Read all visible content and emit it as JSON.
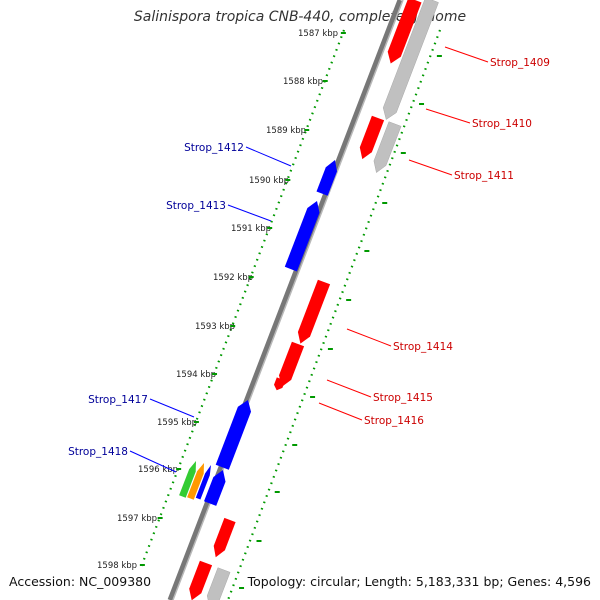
{
  "title": "Salinispora tropica CNB-440, complete genome",
  "footer": {
    "accession_label": "Accession: NC_009380",
    "summary": "Topology: circular; Length: 5,183,331 bp; Genes: 4,596"
  },
  "colors": {
    "forward": "#ff0000",
    "reverse": "#0000ff",
    "label_forward": "#cc0000",
    "label_reverse": "#000099",
    "other_genes": "#c0c0c0",
    "backbone": "#777777",
    "ruler": "#009900",
    "green_feature": "#33cc33",
    "orange_feature": "#ff9900"
  },
  "ruler_ticks": [
    "1587 kbp",
    "1588 kbp",
    "1589 kbp",
    "1590 kbp",
    "1591 kbp",
    "1592 kbp",
    "1593 kbp",
    "1594 kbp",
    "1595 kbp",
    "1596 kbp",
    "1597 kbp",
    "1598 kbp"
  ],
  "gene_labels": {
    "forward": [
      "Strop_1409",
      "Strop_1410",
      "Strop_1411",
      "Strop_1414",
      "Strop_1415",
      "Strop_1416"
    ],
    "reverse": [
      "Strop_1412",
      "Strop_1413",
      "Strop_1417",
      "Strop_1418"
    ]
  }
}
